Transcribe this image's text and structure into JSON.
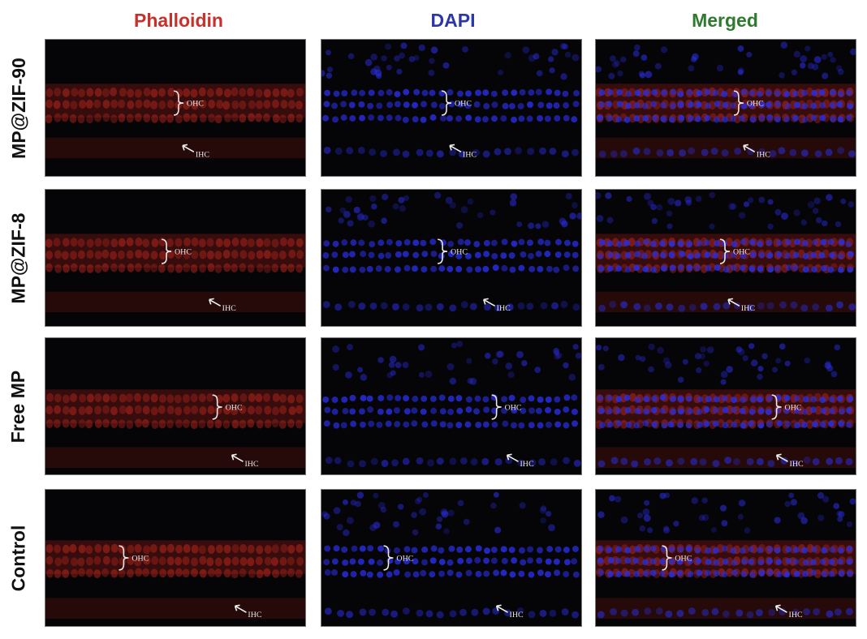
{
  "columns": [
    {
      "key": "phalloidin",
      "label": "Phalloidin",
      "color": "#c8302b"
    },
    {
      "key": "dapi",
      "label": "DAPI",
      "color": "#2b36a8"
    },
    {
      "key": "merged",
      "label": "Merged",
      "color": "#2e7a2e"
    }
  ],
  "rows": [
    {
      "key": "mp-zif-90",
      "label": "MP@ZIF-90"
    },
    {
      "key": "mp-zif-8",
      "label": "MP@ZIF-8"
    },
    {
      "key": "free-mp",
      "label": "Free MP"
    },
    {
      "key": "control",
      "label": "Control"
    }
  ],
  "annotations": {
    "outer": "OHC",
    "inner": "IHC"
  },
  "channel_colors": {
    "red": "#b8261e",
    "blue": "#2a2ee0"
  }
}
